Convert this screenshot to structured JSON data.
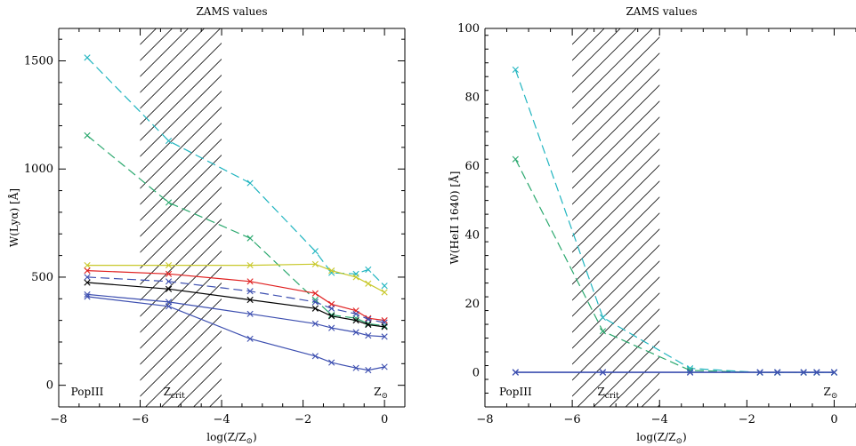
{
  "chart_data": [
    {
      "type": "line",
      "title": "ZAMS values",
      "xlabel": "log(Z/Z",
      "xlabel_sub": "⊙",
      "xlabel_close": ")",
      "ylabel": "W(Lyα) [Å]",
      "xlim": [
        -8,
        0.5
      ],
      "ylim": [
        -100,
        1650
      ],
      "xticks": [
        -8,
        -6,
        -4,
        -2,
        0
      ],
      "yticks": [
        0,
        500,
        1000,
        1500
      ],
      "hatch_region": [
        -6,
        -4
      ],
      "annotations": {
        "popiii": "PopIII",
        "zcrit_main": "Z",
        "zcrit_sub": "crit",
        "zsun_main": "Z",
        "zsun_sub": "⊙"
      },
      "series": [
        {
          "color": "#21b5c0",
          "dash": "10,5",
          "x": [
            -7.3,
            -5.3,
            -3.3,
            -1.7,
            -1.3,
            -0.7,
            -0.4,
            0
          ],
          "values": [
            1515,
            1130,
            935,
            620,
            520,
            515,
            535,
            460
          ]
        },
        {
          "color": "#2aa86e",
          "dash": "10,5",
          "x": [
            -7.3,
            -5.3,
            -3.3,
            -1.7,
            -1.3,
            -0.7,
            -0.4,
            0
          ],
          "values": [
            1155,
            845,
            680,
            395,
            325,
            310,
            285,
            275
          ]
        },
        {
          "color": "#c8c82a",
          "dash": "",
          "x": [
            -7.3,
            -5.3,
            -3.3,
            -1.7,
            -1.3,
            -0.7,
            -0.4,
            0
          ],
          "values": [
            555,
            555,
            555,
            560,
            530,
            500,
            470,
            430
          ]
        },
        {
          "color": "#e02020",
          "dash": "",
          "x": [
            -7.3,
            -5.3,
            -3.3,
            -1.7,
            -1.3,
            -0.7,
            -0.4,
            0
          ],
          "values": [
            530,
            515,
            480,
            425,
            375,
            345,
            310,
            300
          ]
        },
        {
          "color": "#3d4fb0",
          "dash": "10,5",
          "x": [
            -7.3,
            -5.3,
            -3.3,
            -1.7,
            -1.3,
            -0.7,
            -0.4,
            0
          ],
          "values": [
            500,
            480,
            435,
            385,
            355,
            330,
            305,
            290
          ]
        },
        {
          "color": "#000000",
          "dash": "",
          "x": [
            -7.3,
            -5.3,
            -3.3,
            -1.7,
            -1.3,
            -0.7,
            -0.4,
            0
          ],
          "values": [
            475,
            445,
            395,
            355,
            320,
            300,
            280,
            270
          ]
        },
        {
          "color": "#3d4fb0",
          "dash": "",
          "x": [
            -7.3,
            -5.3,
            -3.3,
            -1.7,
            -1.3,
            -0.7,
            -0.4,
            0
          ],
          "values": [
            420,
            385,
            330,
            285,
            265,
            245,
            230,
            225
          ]
        },
        {
          "color": "#3d4fb0",
          "dash": "",
          "x": [
            -7.3,
            -5.3,
            -3.3,
            -1.7,
            -1.3,
            -0.7,
            -0.4,
            0
          ],
          "values": [
            410,
            365,
            215,
            135,
            105,
            80,
            70,
            85
          ]
        }
      ]
    },
    {
      "type": "line",
      "title": "ZAMS values",
      "xlabel": "log(Z/Z",
      "xlabel_sub": "⊙",
      "xlabel_close": ")",
      "ylabel": "W(HeII 1640) [Å]",
      "xlim": [
        -8,
        0.5
      ],
      "ylim": [
        -10,
        100
      ],
      "xticks": [
        -8,
        -6,
        -4,
        -2,
        0
      ],
      "yticks": [
        0,
        20,
        40,
        60,
        80,
        100
      ],
      "hatch_region": [
        -6,
        -4
      ],
      "annotations": {
        "popiii": "PopIII",
        "zcrit_main": "Z",
        "zcrit_sub": "crit",
        "zsun_main": "Z",
        "zsun_sub": "⊙"
      },
      "series": [
        {
          "color": "#21b5c0",
          "dash": "10,5",
          "x": [
            -7.3,
            -5.3,
            -3.3,
            -1.7,
            -1.3,
            -0.7,
            -0.4,
            0
          ],
          "values": [
            88,
            16,
            1.2,
            0,
            0,
            0,
            0,
            0
          ]
        },
        {
          "color": "#2aa86e",
          "dash": "10,5",
          "x": [
            -7.3,
            -5.3,
            -3.3,
            -1.7,
            -1.3,
            -0.7,
            -0.4,
            0
          ],
          "values": [
            62,
            12,
            0.6,
            0,
            0,
            0,
            0,
            0
          ]
        },
        {
          "color": "#3d4fb0",
          "dash": "",
          "x": [
            -7.3,
            -5.3,
            -3.3,
            -1.7,
            -1.3,
            -0.7,
            -0.4,
            0
          ],
          "values": [
            0,
            0,
            0,
            0,
            0,
            0,
            0,
            0
          ]
        },
        {
          "color": "#3d4fb0",
          "dash": "",
          "x": [
            -7.3,
            -5.3,
            -3.3,
            -1.7,
            -1.3,
            -0.7,
            -0.4,
            0
          ],
          "values": [
            0.1,
            0.1,
            0.1,
            0.1,
            0.1,
            0.1,
            0.1,
            0.1
          ]
        }
      ]
    }
  ]
}
